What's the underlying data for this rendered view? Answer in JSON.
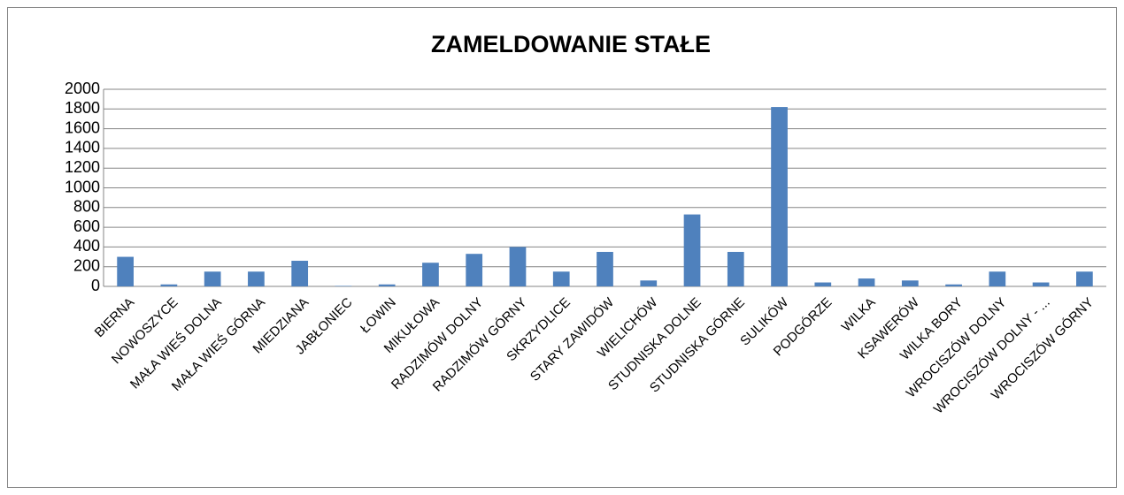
{
  "chart_data": {
    "type": "bar",
    "title": "ZAMELDOWANIE STAŁE",
    "categories": [
      "BIERNA",
      "NOWOSZYCE",
      "MAŁA WIEŚ DOLNA",
      "MAŁA WIEŚ GÓRNA",
      "MIEDZIANA",
      "JABŁONIEC",
      "ŁOWIN",
      "MIKUŁOWA",
      "RADZIMÓW DOLNY",
      "RADZIMÓW GÓRNY",
      "SKRZYDLICE",
      "STARY ZAWIDÓW",
      "WIELICHÓW",
      "STUDNISKA DOLNE",
      "STUDNISKA GÓRNE",
      "SULIKÓW",
      "PODGÓRZE",
      "WILKA",
      "KSAWERÓW",
      "WILKA BORY",
      "WROCISZÓW DOLNY",
      "WROCISZÓW DOLNY - ...",
      "WROCISZÓW GÓRNY"
    ],
    "values": [
      300,
      20,
      150,
      150,
      260,
      5,
      20,
      240,
      330,
      400,
      150,
      350,
      60,
      730,
      350,
      1820,
      40,
      80,
      60,
      20,
      150,
      40,
      150
    ],
    "color": "#4f81bd",
    "ylim": [
      0,
      2000
    ],
    "yticks": [
      0,
      200,
      400,
      600,
      800,
      1000,
      1200,
      1400,
      1600,
      1800,
      2000
    ],
    "grid": true
  }
}
